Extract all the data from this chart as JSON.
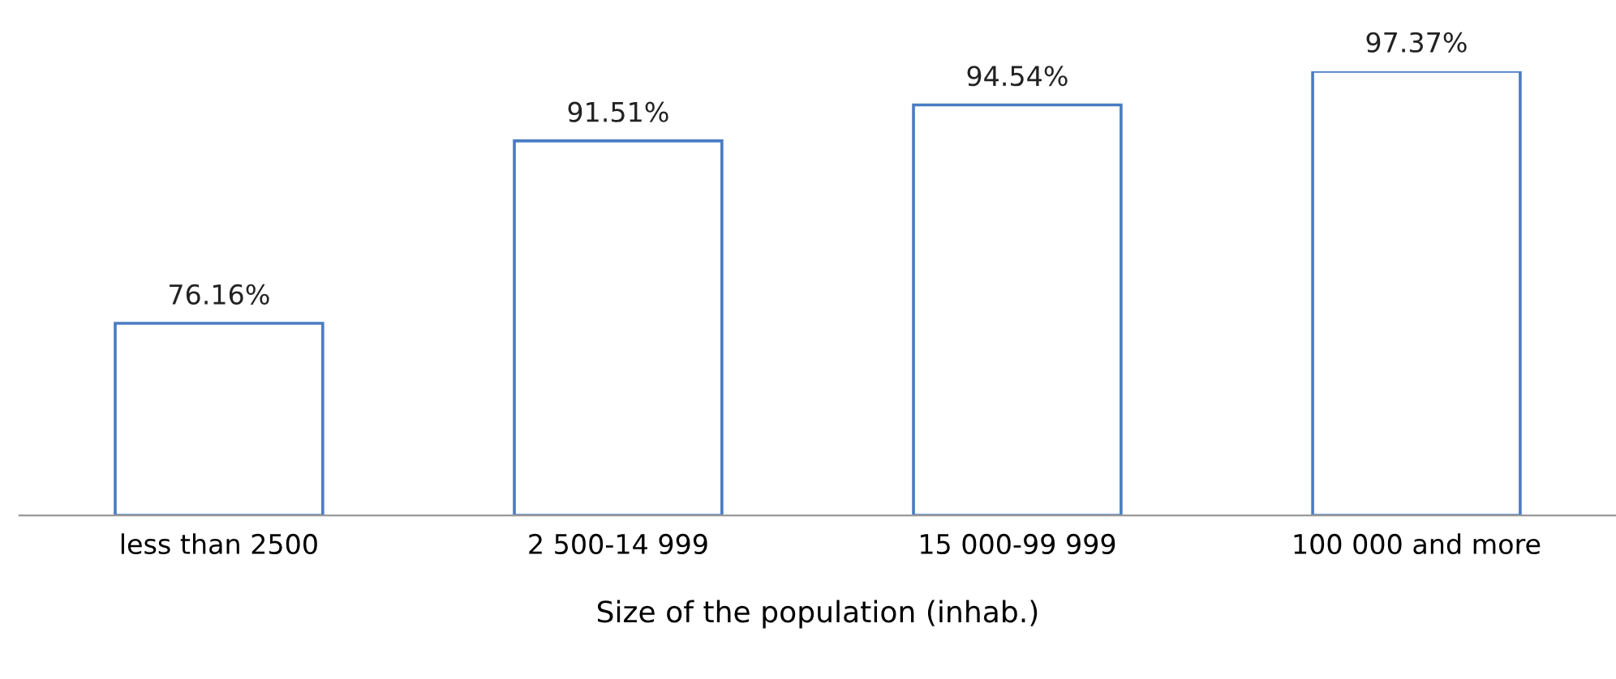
{
  "chart_data": {
    "type": "bar",
    "xlabel": "Size of the population (inhab.)",
    "categories": [
      "less than 2500",
      "2 500-14 999",
      "15 000-99 999",
      "100 000 and more"
    ],
    "values": [
      76.16,
      91.51,
      94.54,
      97.37
    ],
    "value_labels": [
      "76.16%",
      "91.51%",
      "94.54%",
      "97.37%"
    ],
    "color": "#4a7cc4",
    "ylim": [
      60,
      97.37
    ],
    "grid": false,
    "legend": false
  }
}
